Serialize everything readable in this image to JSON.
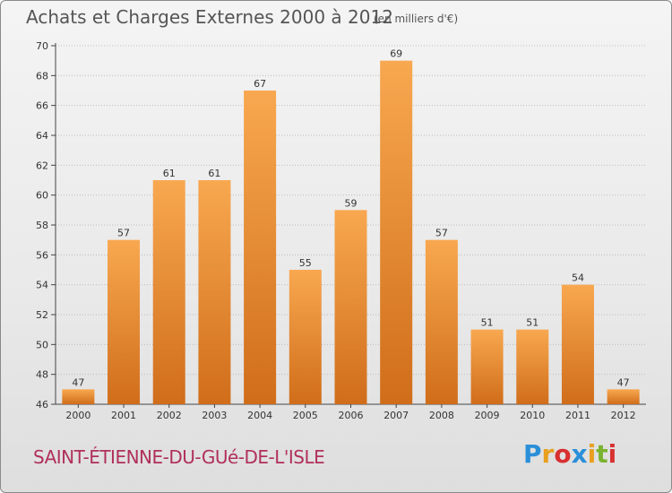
{
  "title": "Achats et Charges Externes 2000 à 2012",
  "subtitle": "(en milliers d'€)",
  "commune": "SAINT-ÉTIENNE-DU-GUé-DE-L'ISLE",
  "logo": {
    "text": "Proxiti",
    "letters": [
      {
        "ch": "P",
        "color": "#2a8fd8"
      },
      {
        "ch": "r",
        "color": "#e8a020"
      },
      {
        "ch": "o",
        "color": "#d83030"
      },
      {
        "ch": "x",
        "color": "#2a8fd8"
      },
      {
        "ch": "i",
        "color": "#e8a020"
      },
      {
        "ch": "t",
        "color": "#7ab32e"
      },
      {
        "ch": "i",
        "color": "#d83030"
      }
    ]
  },
  "colors": {
    "bar_light": "#f8a850",
    "bar_dark": "#d06d1a",
    "title": "#555555",
    "commune": "#b0305a",
    "grid": "#bdbdbd"
  },
  "chart_data": {
    "type": "bar",
    "title": "Achats et Charges Externes 2000 à 2012",
    "subtitle": "(en milliers d'€)",
    "categories": [
      "2000",
      "2001",
      "2002",
      "2003",
      "2004",
      "2005",
      "2006",
      "2007",
      "2008",
      "2009",
      "2010",
      "2011",
      "2012"
    ],
    "values": [
      47,
      57,
      61,
      61,
      67,
      55,
      59,
      69,
      57,
      51,
      51,
      54,
      47
    ],
    "ylim": [
      46,
      70
    ],
    "yticks": [
      46,
      48,
      50,
      52,
      54,
      56,
      58,
      60,
      62,
      64,
      66,
      68,
      70
    ],
    "grid": true,
    "data_labels": true,
    "xlabel": "",
    "ylabel": ""
  }
}
